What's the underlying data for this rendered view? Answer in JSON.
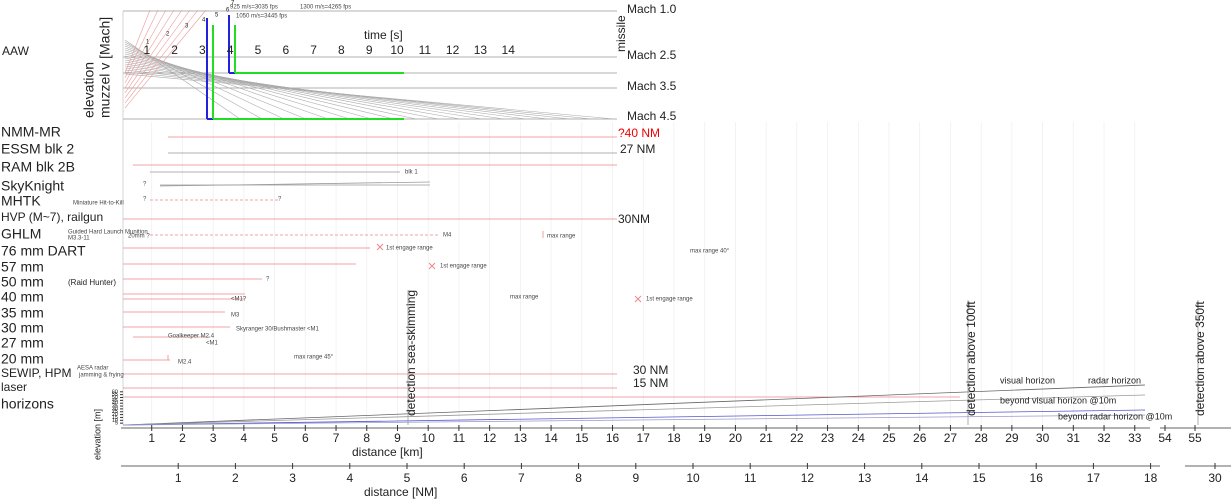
{
  "section": "AAW",
  "velocity_panel": {
    "y_label": [
      "elevation",
      "muzzel v [Mach]"
    ],
    "time_label": "time [s]",
    "time_ticks": [
      1,
      2,
      3,
      4,
      5,
      6,
      7,
      8,
      9,
      10,
      11,
      12,
      13,
      14
    ],
    "mach_labels": [
      "Mach 1.0",
      "Mach 2.5",
      "Mach 3.5",
      "Mach 4.5"
    ],
    "missile_label": "missile",
    "speed_notes": [
      "925 m/s=3035 fps",
      "1300 m/s=4265 fps",
      "1050 m/s=3445 fps"
    ],
    "fan_numbers": [
      1,
      2,
      3,
      4,
      5,
      6,
      7
    ]
  },
  "weapons": [
    {
      "name": "NMM-MR",
      "range": "?40 NM"
    },
    {
      "name": "ESSM blk 2",
      "range": "27 NM"
    },
    {
      "name": "RAM blk 2B",
      "note": "blk 1"
    },
    {
      "name": "SkyKnight"
    },
    {
      "name": "MHTK",
      "subtitle": "Miniature Hit-to-Kill"
    },
    {
      "name": "HVP (M~7), railgun",
      "range": "30NM"
    },
    {
      "name": "GHLM",
      "subtitle": [
        "Guided Hard Launch Munition",
        "M3.3-11"
      ]
    },
    {
      "name": "76 mm DART"
    },
    {
      "name": "57 mm"
    },
    {
      "name": "50 mm",
      "subtitle": "(Raid Hunter)"
    },
    {
      "name": "40 mm"
    },
    {
      "name": "35 mm"
    },
    {
      "name": "30 mm"
    },
    {
      "name": "27 mm"
    },
    {
      "name": "20 mm"
    },
    {
      "name": "SEWIP, HPM",
      "subtitle": [
        "AESA radar",
        "jamming & frying"
      ],
      "range": "30 NM"
    },
    {
      "name": "laser",
      "range": "15 NM"
    },
    {
      "name": "horizons"
    }
  ],
  "annotations": [
    "?",
    "?",
    "?",
    "20mm ?",
    "M4",
    "max range",
    "1st engage range",
    "max range 40°",
    "1st engage range",
    "?",
    "max range",
    "1st engage range",
    "<M1?",
    "M3",
    "Skyranger 30/Bushmaster  <M1",
    "Goalkeeper M2.4",
    "<M1",
    "M2.4",
    "max range 45°"
  ],
  "detection": [
    "detection sea-skimming",
    "detection above 100ft",
    "detection above 350ft"
  ],
  "horizon_labels": [
    "visual horizon",
    "radar horizon",
    "beyond visual horizon @10m",
    "beyond radar horizon @10m"
  ],
  "elevation_axis": {
    "label": "elevation [m]",
    "ticks": [
      60,
      55,
      50,
      45,
      40,
      35,
      30,
      25,
      20,
      15,
      10,
      5
    ]
  },
  "km_axis": {
    "label": "distance [km]",
    "ticks": [
      1,
      2,
      3,
      4,
      5,
      6,
      7,
      8,
      9,
      10,
      11,
      12,
      13,
      14,
      15,
      16,
      17,
      18,
      19,
      20,
      21,
      22,
      23,
      24,
      25,
      26,
      27,
      28,
      29,
      30,
      31,
      32,
      33,
      54,
      55
    ]
  },
  "nm_axis": {
    "label": "distance [NM]",
    "ticks": [
      1,
      2,
      3,
      4,
      5,
      6,
      7,
      8,
      9,
      10,
      11,
      12,
      13,
      14,
      15,
      16,
      17,
      18,
      30
    ]
  }
}
